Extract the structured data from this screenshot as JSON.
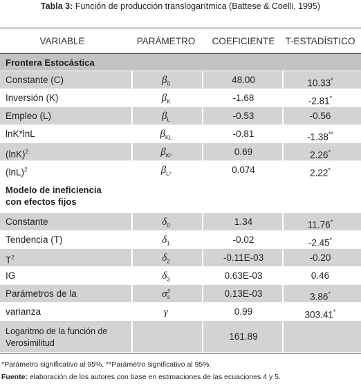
{
  "title": {
    "label": "Tabla 3:",
    "text": "Función de producción translogarítmica (Battese & Coelli, 1995)"
  },
  "table": {
    "headers": [
      "VARIABLE",
      "PARÁMETRO",
      "COEFICIENTE",
      "T-ESTADÍSTICO"
    ],
    "sections": [
      {
        "title": [
          "Frontera Estocástica"
        ],
        "rows": [
          {
            "variable": [
              "Constante (C)"
            ],
            "parameter": {
              "symbol": "β",
              "sub": "0"
            },
            "coefficient": "48.00",
            "t_stat": "10.33",
            "t_note": "*"
          },
          {
            "variable": [
              "Inversión (K)"
            ],
            "parameter": {
              "symbol": "β",
              "sub": "K"
            },
            "coefficient": "-1.68",
            "t_stat": "-2.81",
            "t_note": "*"
          },
          {
            "variable": [
              "Empleo (L)"
            ],
            "parameter": {
              "symbol": "β",
              "sub": "L"
            },
            "coefficient": "-0.53",
            "t_stat": "-0.56"
          },
          {
            "variable": [
              "lnK*lnL"
            ],
            "parameter": {
              "symbol": "β",
              "sub": "KL"
            },
            "coefficient": "-0.81",
            "t_stat": "-1.38",
            "t_note": "**"
          },
          {
            "variable": [
              "(lnK)"
            ],
            "variable_sup": "2",
            "parameter": {
              "symbol": "β",
              "sub": "K²"
            },
            "coefficient": "0.69",
            "t_stat": "2.26",
            "t_note": "*"
          },
          {
            "variable": [
              "(lnL)"
            ],
            "variable_sup": "2",
            "parameter": {
              "symbol": "β",
              "sub": "L²"
            },
            "coefficient": "0.074",
            "t_stat": "2.22",
            "t_note": "*"
          }
        ]
      },
      {
        "title": [
          "Modelo de ineficiencia",
          "con efectos fijos"
        ],
        "rows": [
          {
            "variable": [
              "Constante"
            ],
            "parameter": {
              "symbol": "δ",
              "sub": "0"
            },
            "coefficient": "1.34",
            "t_stat": "11.76",
            "t_note": "*"
          },
          {
            "variable": [
              "Tendencia (T)"
            ],
            "parameter": {
              "symbol": "δ",
              "sub": "1"
            },
            "coefficient": "-0.02",
            "t_stat": "-2.45",
            "t_note": "*"
          },
          {
            "variable": [
              "T"
            ],
            "variable_sup": "2",
            "parameter": {
              "symbol": "δ",
              "sub": "2"
            },
            "coefficient": "-0.11E-03",
            "t_stat": "-0.20"
          },
          {
            "variable": [
              "IG"
            ],
            "parameter": {
              "symbol": "δ",
              "sub": "3"
            },
            "coefficient": "0.63E-03",
            "t_stat": "0.46"
          },
          {
            "variable": [
              "Parámetros de la"
            ],
            "parameter": {
              "symbol": "σ",
              "sub": "s",
              "sup": "2"
            },
            "coefficient": "0.13E-03",
            "t_stat": "3.86",
            "t_note": "*"
          },
          {
            "variable": [
              "varianza"
            ],
            "parameter": {
              "symbol": "γ"
            },
            "coefficient": "0.99",
            "t_stat": "303.41",
            "t_note": "*"
          },
          {
            "variable": [
              "Logaritmo de la función de",
              "Verosimilitud"
            ],
            "coefficient": "161.89"
          }
        ]
      }
    ]
  },
  "footnotes": {
    "note": "*Parámetro significativo al 95%, **Parámetro significativo al 95%.",
    "source_label": "Fuente:",
    "source": "elaboración de los autores con base en estimaciones de las ecuaciones 4 y 5."
  }
}
